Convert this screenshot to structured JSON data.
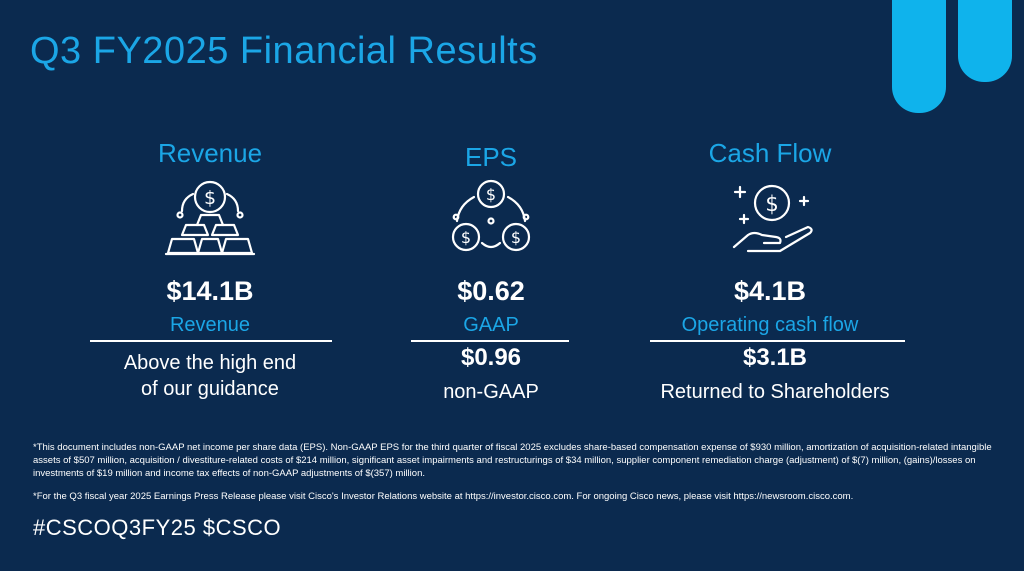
{
  "title": "Q3 FY2025 Financial Results",
  "columns": {
    "revenue": {
      "heading": "Revenue",
      "icon": "coin-gold-bars-icon",
      "value": "$14.1B",
      "label": "Revenue",
      "description_line1": "Above the high end",
      "description_line2": "of our guidance"
    },
    "eps": {
      "heading": "EPS",
      "icon": "three-coins-icon",
      "value": "$0.62",
      "label": "GAAP",
      "value2": "$0.96",
      "label2": "non-GAAP"
    },
    "cash_flow": {
      "heading": "Cash Flow",
      "icon": "hand-coin-icon",
      "value": "$4.1B",
      "label": "Operating cash flow",
      "value2": "$3.1B",
      "label2": "Returned to Shareholders"
    }
  },
  "footnotes": {
    "note1": "*This document includes non-GAAP net income per share data (EPS). Non-GAAP EPS for the third quarter of fiscal 2025 excludes share-based compensation expense of $930 million, amortization of acquisition-related intangible assets of $507 million, acquisition / divestiture-related costs of $214 million, significant asset impairments and restructurings of $34 million, supplier component remediation charge (adjustment) of $(7) million, (gains)/losses on investments of $19 million and income tax effects of non-GAAP adjustments of $(357) million.",
    "note2": "*For the Q3 fiscal year 2025 Earnings Press Release please visit Cisco's Investor Relations website at https://investor.cisco.com. For ongoing Cisco news, please visit https://newsroom.cisco.com."
  },
  "hashtags": "#CSCOQ3FY25  $CSCO",
  "colors": {
    "background": "#0b2a4f",
    "accent": "#1ba6e6",
    "logo": "#0fb3ec",
    "text": "#ffffff"
  }
}
